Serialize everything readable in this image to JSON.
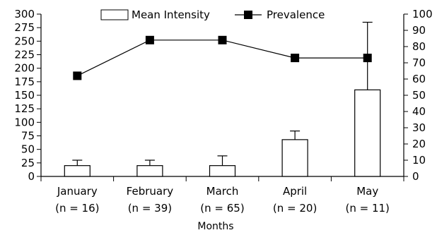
{
  "chart_data": {
    "type": "bar",
    "categories": [
      "January",
      "February",
      "March",
      "April",
      "May"
    ],
    "category_sublabels": [
      "(n = 16)",
      "(n = 39)",
      "(n = 65)",
      "(n = 20)",
      "(n = 11)"
    ],
    "xlabel": "Months",
    "y_left": {
      "range": [
        0,
        300
      ],
      "ticks": [
        "0",
        "25",
        "50",
        "75",
        "100",
        "125",
        "150",
        "175",
        "200",
        "225",
        "250",
        "275",
        "300"
      ]
    },
    "y_right": {
      "range": [
        0,
        100
      ],
      "ticks": [
        "0",
        "10",
        "20",
        "30",
        "40",
        "50",
        "60",
        "70",
        "80",
        "90",
        "100"
      ]
    },
    "series": [
      {
        "name": "Mean Intensity",
        "type": "bar",
        "axis": "left",
        "values": [
          20,
          20,
          20,
          68,
          160
        ],
        "error_upper": [
          30,
          30,
          38,
          84,
          285
        ]
      },
      {
        "name": "Prevalence",
        "type": "line",
        "axis": "right",
        "marker": "square",
        "values": [
          62,
          84,
          84,
          73,
          73
        ]
      }
    ],
    "legend": {
      "placement": "top-center",
      "labels": [
        "Mean Intensity",
        "Prevalence"
      ]
    }
  }
}
